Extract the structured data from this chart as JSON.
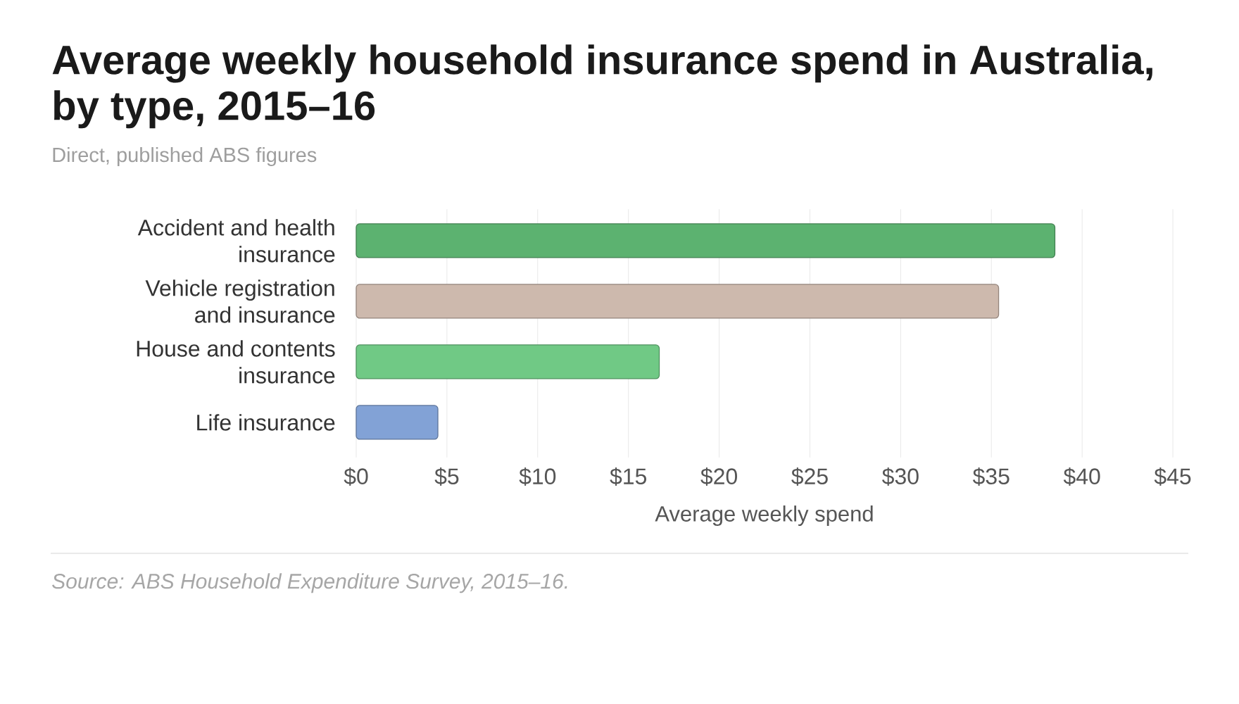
{
  "chart_data": {
    "type": "bar",
    "orientation": "horizontal",
    "title": "Average weekly household insurance spend in Australia, by type, 2015–16",
    "subtitle": "Direct, published ABS figures",
    "xlabel": "Average weekly spend",
    "categories": [
      "Accident and health insurance",
      "Vehicle registration and insurance",
      "House and contents insurance",
      "Life insurance"
    ],
    "values": [
      38.5,
      35.4,
      16.7,
      4.5
    ],
    "colors": [
      "#5cb270",
      "#cdb9ad",
      "#70c985",
      "#82a2d6"
    ],
    "xlim": [
      0,
      45
    ],
    "xticks": [
      {
        "value": 0,
        "label": "$0"
      },
      {
        "value": 5,
        "label": "$5"
      },
      {
        "value": 10,
        "label": "$10"
      },
      {
        "value": 15,
        "label": "$15"
      },
      {
        "value": 20,
        "label": "$20"
      },
      {
        "value": 25,
        "label": "$25"
      },
      {
        "value": 30,
        "label": "$30"
      },
      {
        "value": 35,
        "label": "$35"
      },
      {
        "value": 40,
        "label": "$40"
      },
      {
        "value": 45,
        "label": "$45"
      }
    ],
    "grid": "x",
    "annotations": [
      "Source: ABS Household Expenditure Survey, 2015–16."
    ]
  }
}
